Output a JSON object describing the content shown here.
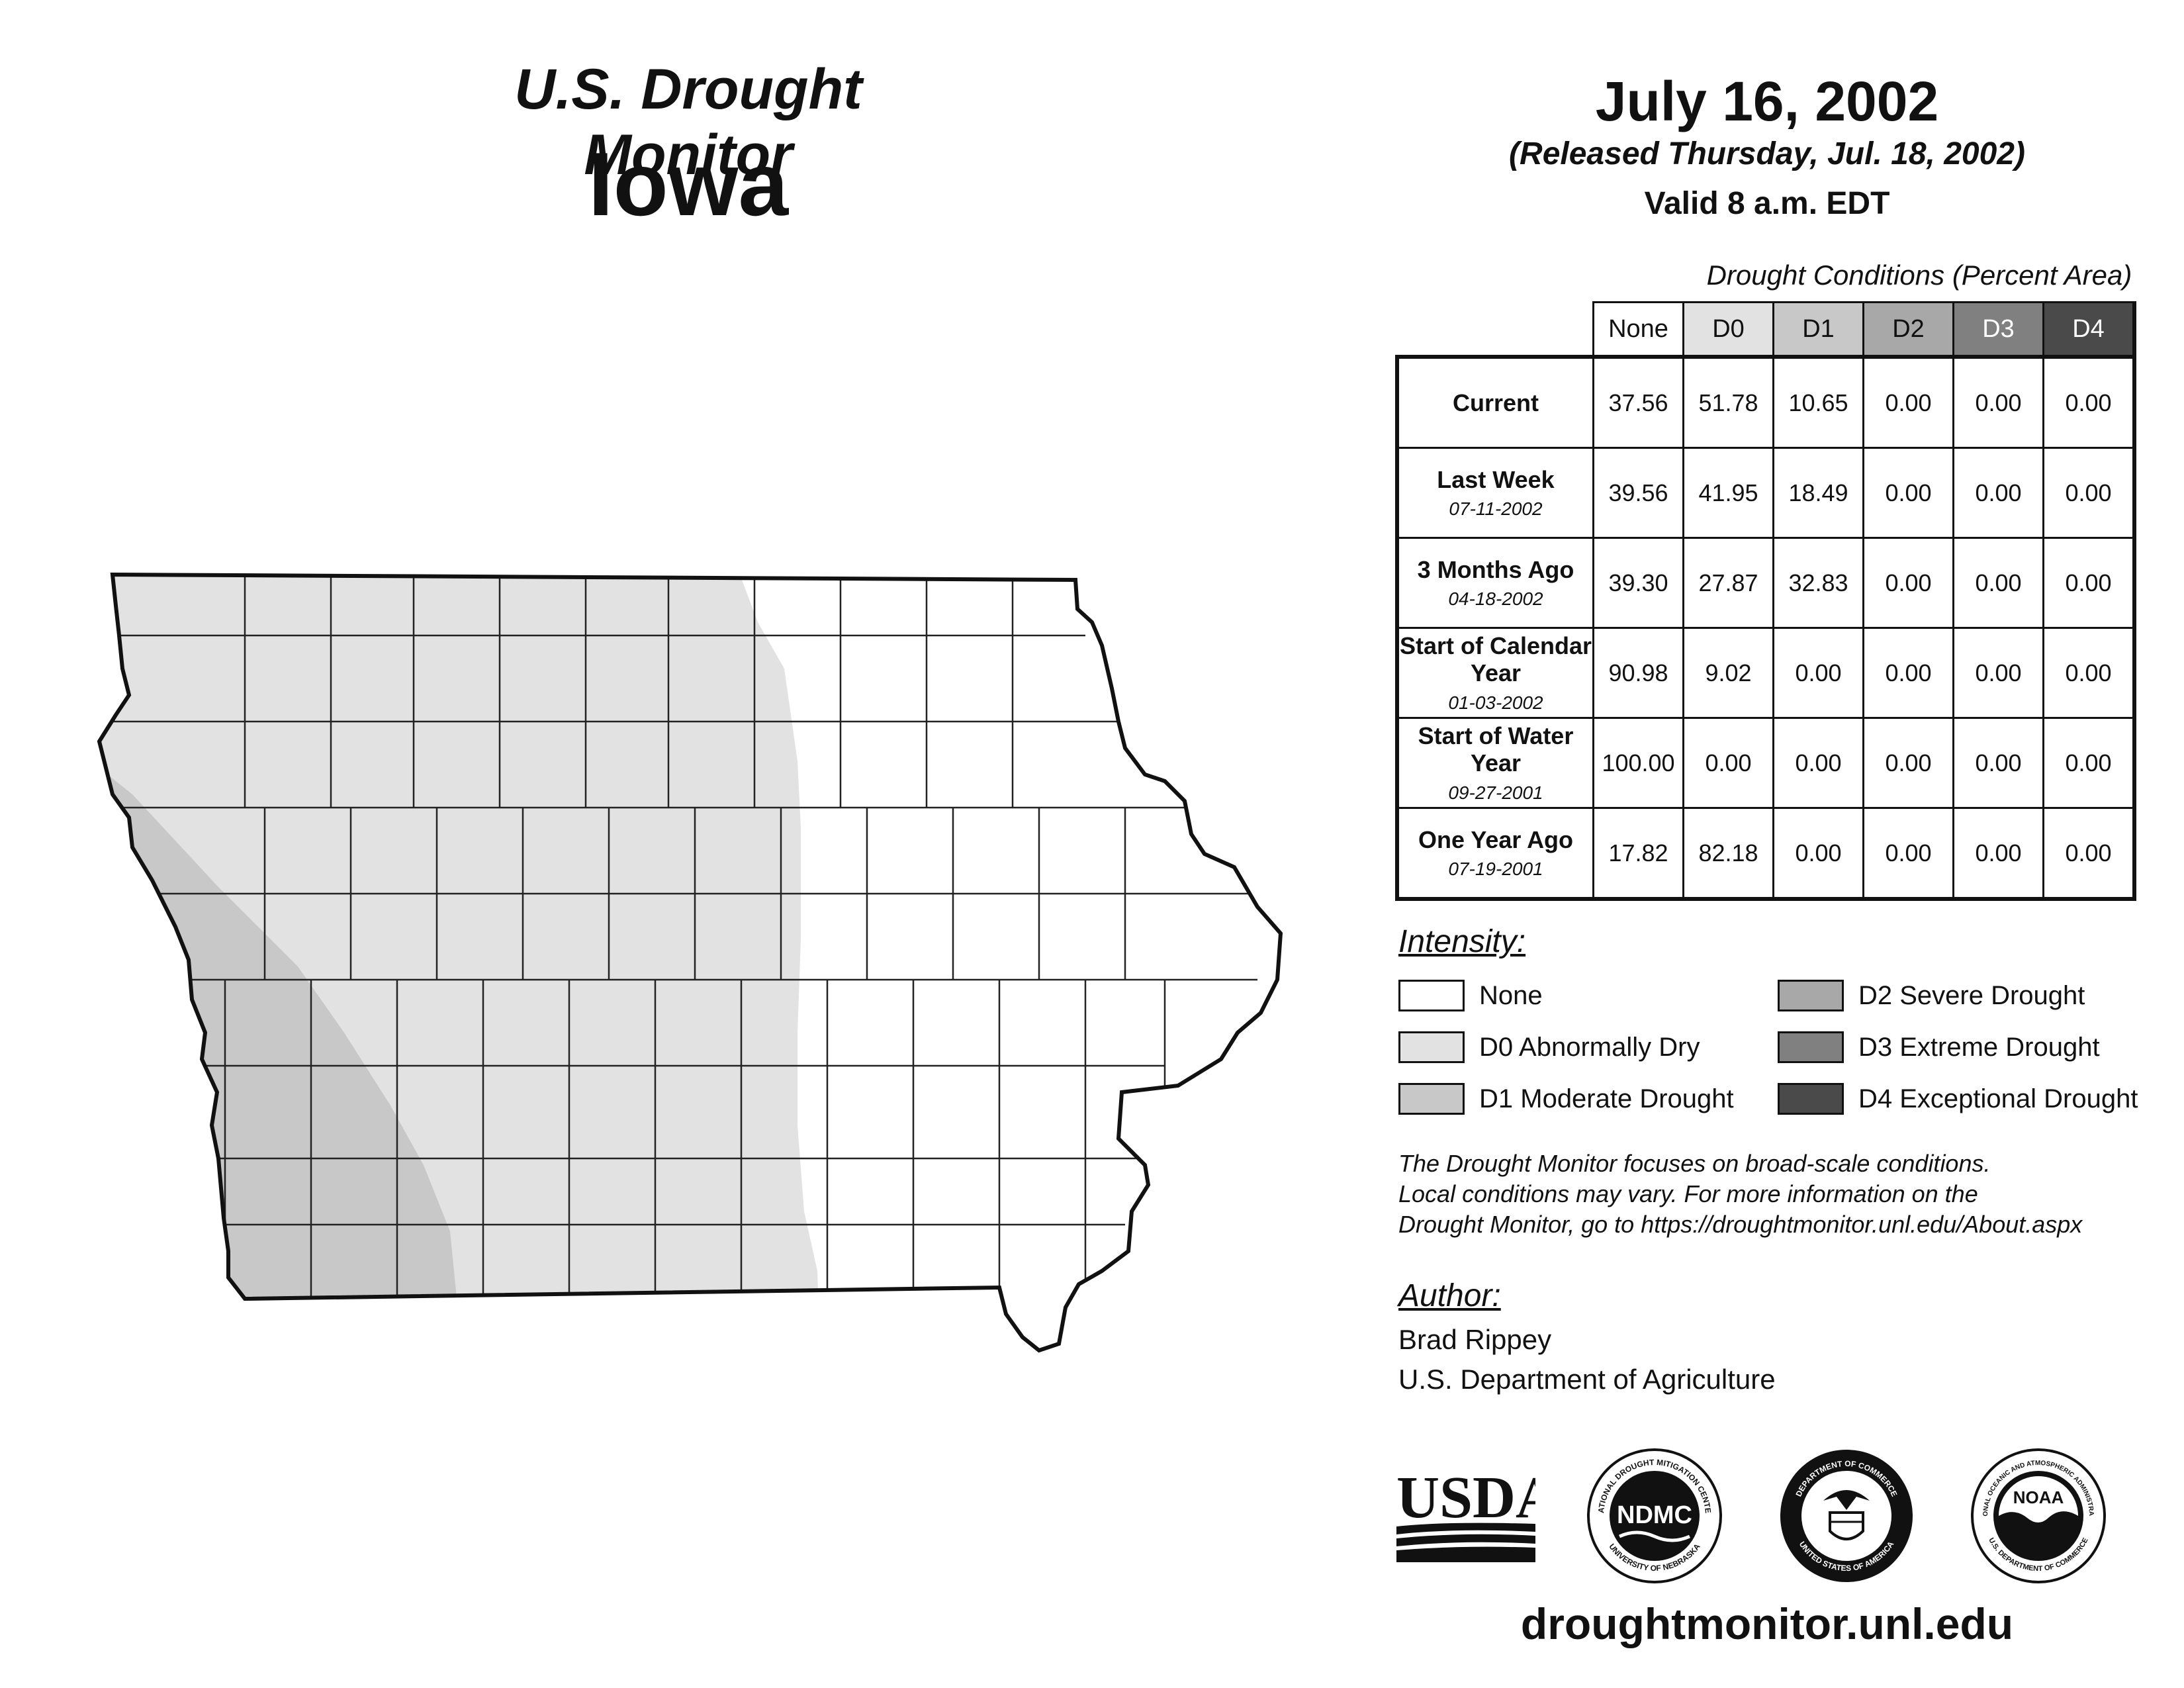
{
  "header": {
    "monitor_title": "U.S. Drought Monitor",
    "state": "Iowa",
    "map_date": "July 16, 2002",
    "release": "(Released Thursday, Jul. 18, 2002)",
    "valid": "Valid 8 a.m. EDT"
  },
  "table": {
    "caption": "Drought Conditions (Percent Area)",
    "columns": [
      "None",
      "D0",
      "D1",
      "D2",
      "D3",
      "D4"
    ],
    "column_colors": [
      "#ffffff",
      "#e2e2e2",
      "#c8c8c8",
      "#a8a8a8",
      "#808080",
      "#4a4a4a"
    ],
    "rows": [
      {
        "label": "Current",
        "date": "",
        "values": [
          "37.56",
          "51.78",
          "10.65",
          "0.00",
          "0.00",
          "0.00"
        ]
      },
      {
        "label": "Last Week",
        "date": "07-11-2002",
        "values": [
          "39.56",
          "41.95",
          "18.49",
          "0.00",
          "0.00",
          "0.00"
        ]
      },
      {
        "label": "3 Months Ago",
        "date": "04-18-2002",
        "values": [
          "39.30",
          "27.87",
          "32.83",
          "0.00",
          "0.00",
          "0.00"
        ]
      },
      {
        "label": "Start of Calendar Year",
        "date": "01-03-2002",
        "values": [
          "90.98",
          "9.02",
          "0.00",
          "0.00",
          "0.00",
          "0.00"
        ]
      },
      {
        "label": "Start of Water Year",
        "date": "09-27-2001",
        "values": [
          "100.00",
          "0.00",
          "0.00",
          "0.00",
          "0.00",
          "0.00"
        ]
      },
      {
        "label": "One Year Ago",
        "date": "07-19-2001",
        "values": [
          "17.82",
          "82.18",
          "0.00",
          "0.00",
          "0.00",
          "0.00"
        ]
      }
    ]
  },
  "legend": {
    "heading": "Intensity:",
    "items": [
      {
        "label": "None",
        "color": "#ffffff"
      },
      {
        "label": "D0 Abnormally Dry",
        "color": "#e2e2e2"
      },
      {
        "label": "D1 Moderate Drought",
        "color": "#c8c8c8"
      },
      {
        "label": "D2 Severe Drought",
        "color": "#a8a8a8"
      },
      {
        "label": "D3 Extreme Drought",
        "color": "#808080"
      },
      {
        "label": "D4 Exceptional Drought",
        "color": "#4a4a4a"
      }
    ]
  },
  "note": {
    "line1": "The Drought Monitor focuses on broad-scale conditions.",
    "line2": "Local conditions may vary. For more information on the",
    "line3": "Drought Monitor, go to https://droughtmonitor.unl.edu/About.aspx"
  },
  "author": {
    "heading": "Author:",
    "name": "Brad Rippey",
    "org": "U.S. Department of Agriculture"
  },
  "logos": {
    "usda": "USDA",
    "ndmc": "NDMC",
    "ndmc_ring_top": "NATIONAL DROUGHT MITIGATION CENTER",
    "ndmc_ring_bottom": "UNIVERSITY OF NEBRASKA",
    "commerce_ring_top": "DEPARTMENT OF COMMERCE",
    "commerce_ring_bottom": "UNITED STATES OF AMERICA",
    "noaa": "NOAA",
    "noaa_ring_top": "NATIONAL OCEANIC AND ATMOSPHERIC ADMINISTRATION",
    "noaa_ring_bottom": "U.S. DEPARTMENT OF COMMERCE"
  },
  "footer": {
    "url": "droughtmonitor.unl.edu"
  }
}
